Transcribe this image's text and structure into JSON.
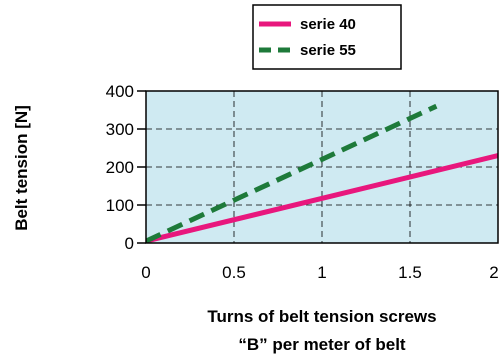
{
  "chart_data": {
    "type": "line",
    "xlabel": [
      "Turns of belt tension screws",
      "“B” per meter of belt"
    ],
    "ylabel": "Belt tension [N]",
    "xlim": [
      0,
      2
    ],
    "ylim": [
      0,
      400
    ],
    "x_ticks": [
      "0",
      "0.5",
      "1",
      "1.5",
      "2"
    ],
    "y_ticks": [
      "0",
      "100",
      "200",
      "300",
      "400"
    ],
    "grid": "dashed",
    "legend_position": "top-center",
    "background_color": "#cfeaf2",
    "series": [
      {
        "name": "serie 40",
        "color": "#e8177d",
        "style": "solid",
        "x": [
          0,
          2
        ],
        "y": [
          5,
          230
        ]
      },
      {
        "name": "serie 55",
        "color": "#1e7a3a",
        "style": "dashed",
        "x": [
          0,
          1.65
        ],
        "y": [
          5,
          360
        ]
      }
    ]
  }
}
